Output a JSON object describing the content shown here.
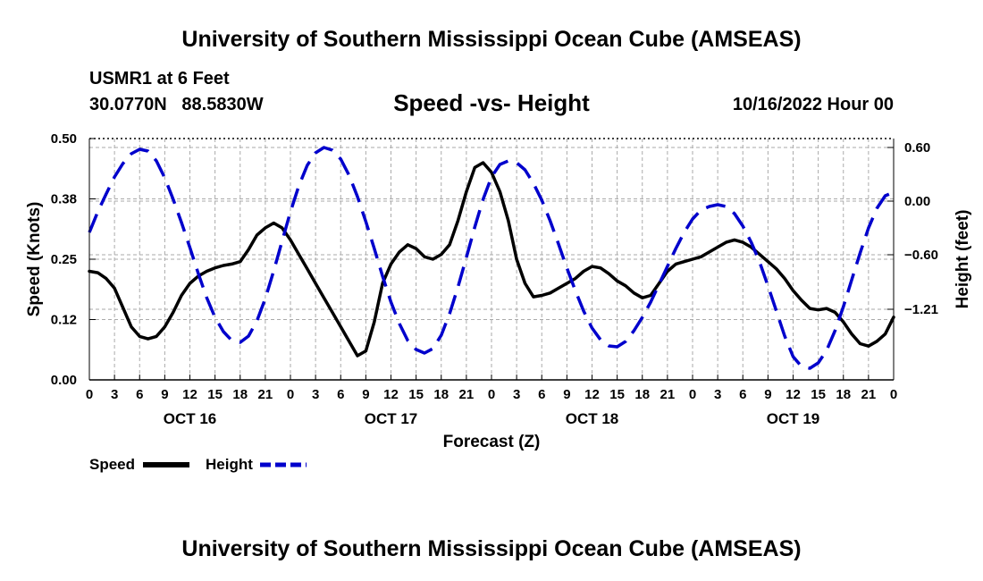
{
  "header": {
    "title": "University of Southern Mississippi Ocean Cube (AMSEAS)",
    "station": "USMR1 at 6 Feet",
    "lat": "30.0770N",
    "lon": "88.5830W",
    "run_time": "10/16/2022 Hour 00"
  },
  "footer": {
    "title": "University of Southern Mississippi Ocean Cube (AMSEAS)"
  },
  "legend": {
    "speed_label": "Speed",
    "height_label": "Height"
  },
  "colors": {
    "speed": "#000000",
    "height": "#0000cc",
    "grid": "#aaaaaa"
  },
  "chart_data": {
    "type": "line",
    "title": "Speed -vs- Height",
    "xlabel": "Forecast (Z)",
    "ylabel": "Speed (Knots)",
    "y2label": "Height (feet)",
    "x_unit": "hours since 10/16/2022 00Z",
    "xlim": [
      0,
      96
    ],
    "ylim": [
      0,
      0.5
    ],
    "y2lim": [
      -2.0,
      0.7
    ],
    "x_ticks": [
      0,
      3,
      6,
      9,
      12,
      15,
      18,
      21,
      24,
      27,
      30,
      33,
      36,
      39,
      42,
      45,
      48,
      51,
      54,
      57,
      60,
      63,
      66,
      69,
      72,
      75,
      78,
      81,
      84,
      87,
      90,
      93,
      96
    ],
    "x_tick_labels": [
      "0",
      "3",
      "6",
      "9",
      "12",
      "15",
      "18",
      "21",
      "0",
      "3",
      "6",
      "9",
      "12",
      "15",
      "18",
      "21",
      "0",
      "3",
      "6",
      "9",
      "12",
      "15",
      "18",
      "21",
      "0",
      "3",
      "6",
      "9",
      "12",
      "15",
      "18",
      "21",
      "0"
    ],
    "day_labels": [
      {
        "label": "OCT 16",
        "x": 12
      },
      {
        "label": "OCT 17",
        "x": 36
      },
      {
        "label": "OCT 18",
        "x": 60
      },
      {
        "label": "OCT 19",
        "x": 84
      }
    ],
    "y_ticks": [
      0.0,
      0.125,
      0.25,
      0.375,
      0.5
    ],
    "y_tick_labels": [
      "0.00",
      "0.12",
      "0.25",
      "0.38",
      "0.50"
    ],
    "y2_ticks": [
      0.6,
      0.0,
      -0.6,
      -1.21
    ],
    "y2_tick_labels": [
      "0.60",
      "0.00",
      "−0.60",
      "−1.21"
    ],
    "series": [
      {
        "name": "Speed",
        "axis": "left",
        "style": "solid",
        "x": [
          0,
          1,
          2,
          3,
          4,
          5,
          6,
          7,
          8,
          9,
          10,
          11,
          12,
          13,
          14,
          15,
          16,
          17,
          18,
          19,
          20,
          21,
          22,
          23,
          24,
          25,
          26,
          27,
          28,
          29,
          30,
          31,
          32,
          33,
          34,
          35,
          36,
          37,
          38,
          39,
          40,
          41,
          42,
          43,
          44,
          45,
          46,
          47,
          48,
          49,
          50,
          51,
          52,
          53,
          54,
          55,
          56,
          57,
          58,
          59,
          60,
          61,
          62,
          63,
          64,
          65,
          66,
          67,
          68,
          69,
          70,
          71,
          72,
          73,
          74,
          75,
          76,
          77,
          78,
          79,
          80,
          81,
          82,
          83,
          84,
          85,
          86,
          87,
          88,
          89,
          90,
          91,
          92,
          93,
          94,
          95,
          96
        ],
        "values": [
          0.225,
          0.222,
          0.21,
          0.19,
          0.15,
          0.11,
          0.09,
          0.085,
          0.09,
          0.11,
          0.14,
          0.175,
          0.2,
          0.215,
          0.225,
          0.232,
          0.237,
          0.24,
          0.245,
          0.27,
          0.3,
          0.315,
          0.325,
          0.315,
          0.29,
          0.26,
          0.23,
          0.2,
          0.17,
          0.14,
          0.11,
          0.08,
          0.05,
          0.06,
          0.12,
          0.2,
          0.24,
          0.265,
          0.28,
          0.272,
          0.255,
          0.25,
          0.26,
          0.28,
          0.33,
          0.39,
          0.44,
          0.45,
          0.43,
          0.39,
          0.33,
          0.25,
          0.2,
          0.172,
          0.175,
          0.18,
          0.19,
          0.2,
          0.21,
          0.225,
          0.235,
          0.232,
          0.22,
          0.205,
          0.195,
          0.18,
          0.17,
          0.175,
          0.2,
          0.225,
          0.24,
          0.245,
          0.25,
          0.255,
          0.265,
          0.275,
          0.285,
          0.29,
          0.285,
          0.275,
          0.26,
          0.245,
          0.23,
          0.21,
          0.185,
          0.165,
          0.148,
          0.145,
          0.148,
          0.14,
          0.12,
          0.095,
          0.075,
          0.07,
          0.08,
          0.095,
          0.13
        ]
      },
      {
        "name": "Height",
        "axis": "right",
        "style": "dashed",
        "x": [
          0,
          1,
          2,
          3,
          4,
          5,
          6,
          7,
          8,
          9,
          10,
          11,
          12,
          13,
          14,
          15,
          16,
          17,
          18,
          19,
          20,
          21,
          22,
          23,
          24,
          25,
          26,
          27,
          28,
          29,
          30,
          31,
          32,
          33,
          34,
          35,
          36,
          37,
          38,
          39,
          40,
          41,
          42,
          43,
          44,
          45,
          46,
          47,
          48,
          49,
          50,
          51,
          52,
          53,
          54,
          55,
          56,
          57,
          58,
          59,
          60,
          61,
          62,
          63,
          64,
          65,
          66,
          67,
          68,
          69,
          70,
          71,
          72,
          73,
          74,
          75,
          76,
          77,
          78,
          79,
          80,
          81,
          82,
          83,
          84,
          85,
          86,
          87,
          88,
          89,
          90,
          91,
          92,
          93,
          94,
          95,
          96
        ],
        "values": [
          -0.35,
          -0.12,
          0.08,
          0.27,
          0.42,
          0.53,
          0.58,
          0.56,
          0.45,
          0.26,
          0.02,
          -0.24,
          -0.52,
          -0.81,
          -1.08,
          -1.3,
          -1.46,
          -1.56,
          -1.58,
          -1.51,
          -1.34,
          -1.09,
          -0.78,
          -0.45,
          -0.12,
          0.17,
          0.4,
          0.54,
          0.6,
          0.57,
          0.47,
          0.29,
          0.05,
          -0.23,
          -0.53,
          -0.84,
          -1.13,
          -1.37,
          -1.56,
          -1.66,
          -1.7,
          -1.65,
          -1.5,
          -1.26,
          -0.96,
          -0.63,
          -0.29,
          0.02,
          0.27,
          0.41,
          0.45,
          0.43,
          0.35,
          0.2,
          0.01,
          -0.22,
          -0.48,
          -0.75,
          -1.0,
          -1.23,
          -1.42,
          -1.55,
          -1.62,
          -1.63,
          -1.57,
          -1.45,
          -1.3,
          -1.13,
          -0.93,
          -0.73,
          -0.53,
          -0.35,
          -0.2,
          -0.1,
          -0.06,
          -0.04,
          -0.06,
          -0.14,
          -0.28,
          -0.46,
          -0.68,
          -0.95,
          -1.23,
          -1.51,
          -1.74,
          -1.85,
          -1.87,
          -1.81,
          -1.67,
          -1.45,
          -1.18,
          -0.88,
          -0.58,
          -0.3,
          -0.08,
          0.06,
          0.1
        ]
      }
    ]
  }
}
